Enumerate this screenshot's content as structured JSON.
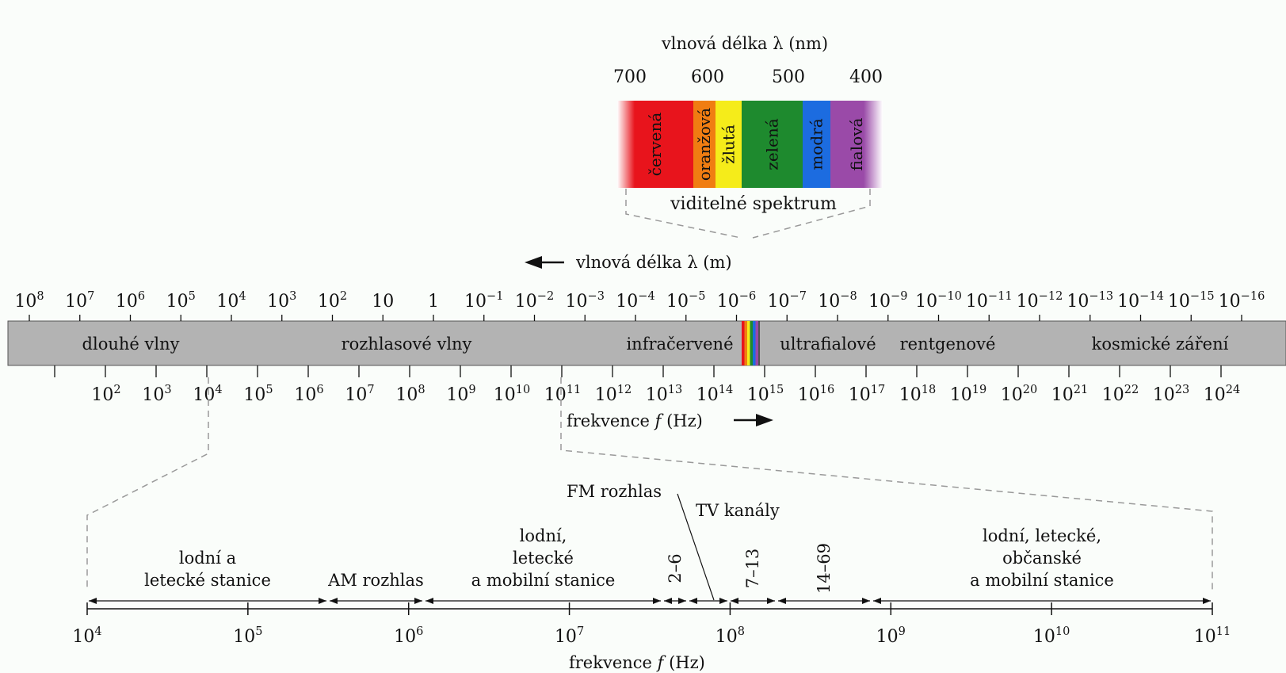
{
  "visible": {
    "axis_title": "vlnová délka λ (nm)",
    "ticks": [
      "700",
      "600",
      "500",
      "400"
    ],
    "colors": [
      {
        "label": "červená",
        "color": "#e8141c"
      },
      {
        "label": "oranžová",
        "color": "#f07d12"
      },
      {
        "label": "žlutá",
        "color": "#f5ec1a"
      },
      {
        "label": "zelená",
        "color": "#1e8a2e"
      },
      {
        "label": "modrá",
        "color": "#1c6ce0"
      },
      {
        "label": "fialová",
        "color": "#9a4aa8"
      }
    ],
    "caption": "viditelné spektrum"
  },
  "main": {
    "wavelength_label": "vlnová délka λ (m)",
    "wavelength_ticks": [
      {
        "base": "10",
        "exp": "8"
      },
      {
        "base": "10",
        "exp": "7"
      },
      {
        "base": "10",
        "exp": "6"
      },
      {
        "base": "10",
        "exp": "5"
      },
      {
        "base": "10",
        "exp": "4"
      },
      {
        "base": "10",
        "exp": "3"
      },
      {
        "base": "10",
        "exp": "2"
      },
      {
        "base": "10",
        "exp": ""
      },
      {
        "base": "1",
        "exp": ""
      },
      {
        "base": "10",
        "exp": "−1"
      },
      {
        "base": "10",
        "exp": "−2"
      },
      {
        "base": "10",
        "exp": "−3"
      },
      {
        "base": "10",
        "exp": "−4"
      },
      {
        "base": "10",
        "exp": "−5"
      },
      {
        "base": "10",
        "exp": "−6"
      },
      {
        "base": "10",
        "exp": "−7"
      },
      {
        "base": "10",
        "exp": "−8"
      },
      {
        "base": "10",
        "exp": "−9"
      },
      {
        "base": "10",
        "exp": "−10"
      },
      {
        "base": "10",
        "exp": "−11"
      },
      {
        "base": "10",
        "exp": "−12"
      },
      {
        "base": "10",
        "exp": "−13"
      },
      {
        "base": "10",
        "exp": "−14"
      },
      {
        "base": "10",
        "exp": "−15"
      },
      {
        "base": "10",
        "exp": "−16"
      }
    ],
    "bands": [
      "dlouhé vlny",
      "rozhlasové vlny",
      "infračervené",
      "ultrafialové",
      "rentgenové",
      "kosmické záření"
    ],
    "frequency_ticks": [
      {
        "base": "10",
        "exp": "2"
      },
      {
        "base": "10",
        "exp": "3"
      },
      {
        "base": "10",
        "exp": "4"
      },
      {
        "base": "10",
        "exp": "5"
      },
      {
        "base": "10",
        "exp": "6"
      },
      {
        "base": "10",
        "exp": "7"
      },
      {
        "base": "10",
        "exp": "8"
      },
      {
        "base": "10",
        "exp": "9"
      },
      {
        "base": "10",
        "exp": "10"
      },
      {
        "base": "10",
        "exp": "11"
      },
      {
        "base": "10",
        "exp": "12"
      },
      {
        "base": "10",
        "exp": "13"
      },
      {
        "base": "10",
        "exp": "14"
      },
      {
        "base": "10",
        "exp": "15"
      },
      {
        "base": "10",
        "exp": "16"
      },
      {
        "base": "10",
        "exp": "17"
      },
      {
        "base": "10",
        "exp": "18"
      },
      {
        "base": "10",
        "exp": "19"
      },
      {
        "base": "10",
        "exp": "20"
      },
      {
        "base": "10",
        "exp": "21"
      },
      {
        "base": "10",
        "exp": "22"
      },
      {
        "base": "10",
        "exp": "23"
      },
      {
        "base": "10",
        "exp": "24"
      }
    ],
    "frequency_label_pre": "frekvence ",
    "frequency_label_var": "f",
    "frequency_label_post": " (Hz)",
    "bar_color": "#b3b3b3"
  },
  "radio": {
    "fm_label": "FM rozhlas",
    "tv_label": "TV kanály",
    "segments": [
      {
        "lines": [
          "lodní a",
          "letecké stanice"
        ]
      },
      {
        "lines": [
          "AM rozhlas"
        ]
      },
      {
        "lines": [
          "lodní,",
          "letecké",
          "a mobilní stanice"
        ]
      },
      {
        "lines": [
          "2–6"
        ],
        "rotated": true
      },
      {
        "lines": [],
        "rotated": false
      },
      {
        "lines": [
          "7–13"
        ],
        "rotated": true
      },
      {
        "lines": [
          "14–69"
        ],
        "rotated": true
      },
      {
        "lines": [
          "lodní, letecké,",
          "občanské",
          "a mobilní stanice"
        ]
      }
    ],
    "ticks": [
      {
        "base": "10",
        "exp": "4"
      },
      {
        "base": "10",
        "exp": "5"
      },
      {
        "base": "10",
        "exp": "6"
      },
      {
        "base": "10",
        "exp": "7"
      },
      {
        "base": "10",
        "exp": "8"
      },
      {
        "base": "10",
        "exp": "9"
      },
      {
        "base": "10",
        "exp": "10"
      },
      {
        "base": "10",
        "exp": "11"
      }
    ],
    "frequency_label_pre": "frekvence ",
    "frequency_label_var": "f",
    "frequency_label_post": " (Hz)"
  }
}
